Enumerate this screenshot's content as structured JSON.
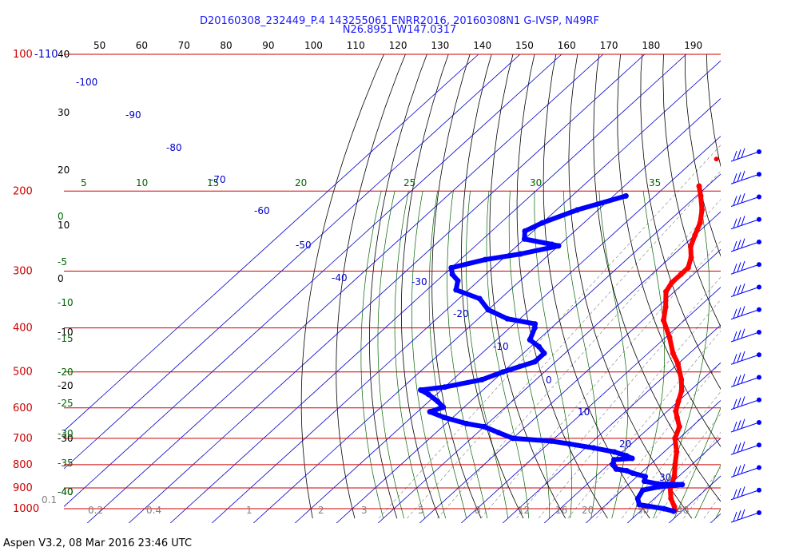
{
  "header": {
    "line1": "D20160308_232449_P.4 143255061 ENRR2016, 20160308N1 G-IVSP, N49RF",
    "line2": "N26.8951 W147.0317"
  },
  "footer": {
    "text": "Aspen V3.2, 08 Mar 2016  23:46 UTC"
  },
  "colors": {
    "temperature": "#ff0000",
    "dewpoint": "#0000ff",
    "isobar": "#cc0000",
    "isotherm": "#0000cc",
    "dry_adiabat": "#000000",
    "moist_adiabat": "#006400",
    "mixing_ratio": "#808080"
  },
  "chart_data": {
    "type": "line",
    "title": "D20160308_232449_P.4 143255061 ENRR2016, 20160308N1 G-IVSP, N49RF",
    "subtitle": "N26.8951 W147.0317",
    "xlabel": "",
    "ylabel": "",
    "pressure_levels_hpa": [
      100,
      200,
      300,
      400,
      500,
      600,
      700,
      800,
      900,
      1000
    ],
    "pressure_labels": [
      "100",
      "200",
      "300",
      "400",
      "500",
      "600",
      "700",
      "800",
      "900",
      "1000"
    ],
    "pressure_extra_label": "-110",
    "height_labels": [
      "40",
      "30",
      "20",
      "10",
      "0",
      "-10",
      "-20",
      "-30",
      "-40"
    ],
    "top_labels": [
      "50",
      "60",
      "70",
      "80",
      "90",
      "100",
      "110",
      "120",
      "130",
      "140",
      "150",
      "160",
      "170",
      "180",
      "190"
    ],
    "isotherm_labels": [
      "-100",
      "-90",
      "-80",
      "-70",
      "-60",
      "-50",
      "-40",
      "-30",
      "-20",
      "-10",
      "0",
      "10",
      "20",
      "30"
    ],
    "theta_e_labels_top": [
      "5",
      "10",
      "15",
      "20",
      "25",
      "30",
      "35"
    ],
    "theta_e_labels_left": [
      "0",
      "-5",
      "-10",
      "-15",
      "-20",
      "-25",
      "-30",
      "-35",
      "-40"
    ],
    "mixing_ratio_labels": [
      "0.1",
      "0.2",
      "0.4",
      "1",
      "2",
      "3",
      "5",
      "8",
      "12",
      "16",
      "20",
      "30",
      "40"
    ],
    "series": [
      {
        "name": "Temperature",
        "marker_top": [
          -55,
          170
        ],
        "points": [
          [
            -52,
            195
          ],
          [
            -49,
            205
          ],
          [
            -45,
            220
          ],
          [
            -42,
            235
          ],
          [
            -40,
            250
          ],
          [
            -38,
            265
          ],
          [
            -35,
            280
          ],
          [
            -33,
            295
          ],
          [
            -33,
            305
          ],
          [
            -33,
            318
          ],
          [
            -32,
            333
          ],
          [
            -28,
            360
          ],
          [
            -25,
            385
          ],
          [
            -19,
            420
          ],
          [
            -14,
            455
          ],
          [
            -10,
            480
          ],
          [
            -5,
            520
          ],
          [
            -2,
            550
          ],
          [
            0,
            580
          ],
          [
            2,
            610
          ],
          [
            4,
            630
          ],
          [
            7,
            660
          ],
          [
            9,
            700
          ],
          [
            13,
            750
          ],
          [
            16,
            800
          ],
          [
            19,
            850
          ],
          [
            21,
            900
          ],
          [
            24,
            950
          ],
          [
            27,
            990
          ],
          [
            28,
            1008
          ]
        ]
      },
      {
        "name": "Dew point",
        "points": [
          [
            -67,
            205
          ],
          [
            -75,
            220
          ],
          [
            -80,
            235
          ],
          [
            -82,
            245
          ],
          [
            -80,
            255
          ],
          [
            -72,
            262
          ],
          [
            -70,
            264
          ],
          [
            -77,
            275
          ],
          [
            -84,
            283
          ],
          [
            -90,
            295
          ],
          [
            -88,
            305
          ],
          [
            -85,
            315
          ],
          [
            -83,
            330
          ],
          [
            -75,
            345
          ],
          [
            -70,
            365
          ],
          [
            -63,
            382
          ],
          [
            -55,
            392
          ],
          [
            -54,
            400
          ],
          [
            -52,
            425
          ],
          [
            -48,
            440
          ],
          [
            -45,
            455
          ],
          [
            -45,
            475
          ],
          [
            -50,
            500
          ],
          [
            -53,
            520
          ],
          [
            -60,
            540
          ],
          [
            -65,
            548
          ],
          [
            -62,
            560
          ],
          [
            -58,
            580
          ],
          [
            -55,
            598
          ],
          [
            -57,
            612
          ],
          [
            -52,
            630
          ],
          [
            -45,
            650
          ],
          [
            -40,
            660
          ],
          [
            -35,
            680
          ],
          [
            -30,
            700
          ],
          [
            -20,
            710
          ],
          [
            -15,
            720
          ],
          [
            -8,
            735
          ],
          [
            -2,
            750
          ],
          [
            2,
            765
          ],
          [
            4,
            775
          ],
          [
            0,
            780
          ],
          [
            1,
            800
          ],
          [
            3,
            818
          ],
          [
            6,
            825
          ],
          [
            8,
            835
          ],
          [
            12,
            850
          ],
          [
            13,
            870
          ],
          [
            17,
            882
          ],
          [
            23,
            885
          ],
          [
            18,
            895
          ],
          [
            15,
            910
          ],
          [
            16,
            950
          ],
          [
            18,
            980
          ],
          [
            25,
            1000
          ],
          [
            28,
            1013
          ]
        ]
      }
    ],
    "wind_barb_rows": 17,
    "grid": true,
    "legend": "none"
  }
}
